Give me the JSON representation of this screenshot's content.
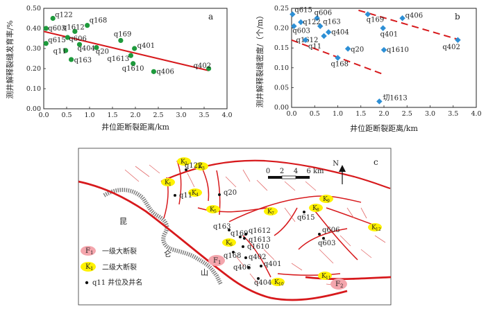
{
  "chart_data": [
    {
      "panel": "a",
      "type": "scatter",
      "xlabel": "井位距断裂距离/km",
      "ylabel": "测井解释裂缝发育率/%",
      "xlim": [
        0.0,
        4.0
      ],
      "ylim": [
        0.0,
        0.5
      ],
      "xticks": [
        "0.0",
        "0.5",
        "1.0",
        "1.5",
        "2.0",
        "2.5",
        "3.0",
        "3.5",
        "4.0"
      ],
      "yticks": [
        "0.00",
        "0.10",
        "0.20",
        "0.30",
        "0.40",
        "0.50"
      ],
      "point_color": "#1e9a3c",
      "line_color": "#d7191c",
      "trend": {
        "x": [
          0.0,
          3.6
        ],
        "y": [
          0.385,
          0.19
        ]
      },
      "points": [
        {
          "label": "q122",
          "x": 0.2,
          "y": 0.45
        },
        {
          "label": "q603",
          "x": 0.05,
          "y": 0.4
        },
        {
          "label": "q168",
          "x": 0.95,
          "y": 0.415
        },
        {
          "label": "q1612",
          "x": 0.68,
          "y": 0.385
        },
        {
          "label": "q606",
          "x": 0.52,
          "y": 0.355
        },
        {
          "label": "q615",
          "x": 0.05,
          "y": 0.325
        },
        {
          "label": "q404",
          "x": 0.78,
          "y": 0.32
        },
        {
          "label": "q11",
          "x": 0.48,
          "y": 0.29
        },
        {
          "label": "q163",
          "x": 0.6,
          "y": 0.245
        },
        {
          "label": "q20",
          "x": 1.15,
          "y": 0.305
        },
        {
          "label": "q169",
          "x": 1.68,
          "y": 0.34
        },
        {
          "label": "q1613",
          "x": 1.9,
          "y": 0.265
        },
        {
          "label": "q401",
          "x": 1.98,
          "y": 0.3
        },
        {
          "label": "q1610",
          "x": 1.95,
          "y": 0.225
        },
        {
          "label": "q406",
          "x": 2.4,
          "y": 0.185
        },
        {
          "label": "q402",
          "x": 3.6,
          "y": 0.2
        }
      ]
    },
    {
      "panel": "b",
      "type": "scatter",
      "xlabel": "井位距断裂距离/km",
      "ylabel": "测井解释裂缝密度/（个/m）",
      "xlim": [
        0.0,
        4.0
      ],
      "ylim": [
        0.0,
        0.25
      ],
      "xticks": [
        "0.0",
        "0.5",
        "1.0",
        "1.5",
        "2.0",
        "2.5",
        "3.0",
        "3.5",
        "4.0"
      ],
      "yticks": [
        "0.00",
        "0.05",
        "0.10",
        "0.15",
        "0.20",
        "0.25"
      ],
      "point_color": "#2d8fd5",
      "line_color": "#d7191c",
      "upper_line": {
        "x": [
          1.45,
          3.65
        ],
        "y": [
          0.245,
          0.17
        ]
      },
      "lower_line": {
        "x": [
          0.0,
          1.95
        ],
        "y": [
          0.17,
          0.085
        ]
      },
      "points": [
        {
          "label": "q615",
          "x": 0.02,
          "y": 0.235
        },
        {
          "label": "q606",
          "x": 0.55,
          "y": 0.225
        },
        {
          "label": "q122",
          "x": 0.2,
          "y": 0.215
        },
        {
          "label": "q603",
          "x": 0.05,
          "y": 0.205
        },
        {
          "label": "q163",
          "x": 0.62,
          "y": 0.205
        },
        {
          "label": "q404",
          "x": 0.8,
          "y": 0.19
        },
        {
          "label": "q1612",
          "x": 0.7,
          "y": 0.18
        },
        {
          "label": "q169",
          "x": 1.65,
          "y": 0.235
        },
        {
          "label": "q406",
          "x": 2.4,
          "y": 0.225
        },
        {
          "label": "q401",
          "x": 1.98,
          "y": 0.2
        },
        {
          "label": "q11",
          "x": 0.3,
          "y": 0.17
        },
        {
          "label": "q20",
          "x": 1.22,
          "y": 0.148
        },
        {
          "label": "q1610",
          "x": 2.0,
          "y": 0.145
        },
        {
          "label": "q168",
          "x": 1.0,
          "y": 0.125
        },
        {
          "label": "q402",
          "x": 3.6,
          "y": 0.17
        },
        {
          "label": "切1613",
          "x": 1.9,
          "y": 0.015
        }
      ]
    }
  ],
  "map": {
    "panel": "c",
    "scale_ticks": [
      "0",
      "2",
      "4",
      "6 km"
    ],
    "north": "N",
    "legend": [
      {
        "symbol": "F1",
        "sym_main": "F",
        "sym_sub": "1",
        "text": "一级大断裂",
        "color": "#f4a6ad"
      },
      {
        "symbol": "K1",
        "sym_main": "K",
        "sym_sub": "1",
        "text": "二级大断裂",
        "color": "#fff200"
      },
      {
        "symbol": "well",
        "text": "q11  井位及井名"
      }
    ],
    "region": [
      "昆",
      "仑",
      "山"
    ],
    "faults": [
      {
        "m": "F",
        "s": "1"
      },
      {
        "m": "F",
        "s": "2"
      }
    ],
    "k_labels": [
      {
        "m": "K",
        "s": "2"
      },
      {
        "m": "K",
        "s": "3"
      },
      {
        "m": "K",
        "s": "1"
      },
      {
        "m": "K",
        "s": "4"
      },
      {
        "m": "K",
        "s": "5"
      },
      {
        "m": "K",
        "s": "7"
      },
      {
        "m": "K",
        "s": "8"
      },
      {
        "m": "K",
        "s": "9"
      },
      {
        "m": "K",
        "s": "12"
      },
      {
        "m": "K",
        "s": "6"
      },
      {
        "m": "K",
        "s": "10"
      },
      {
        "m": "K",
        "s": "11"
      }
    ],
    "wells": [
      "q122",
      "q11",
      "q20",
      "q615",
      "q163",
      "q169",
      "q1612",
      "q1613",
      "q1610",
      "q168",
      "q402",
      "q406",
      "q401",
      "q404",
      "q606",
      "q603"
    ]
  }
}
